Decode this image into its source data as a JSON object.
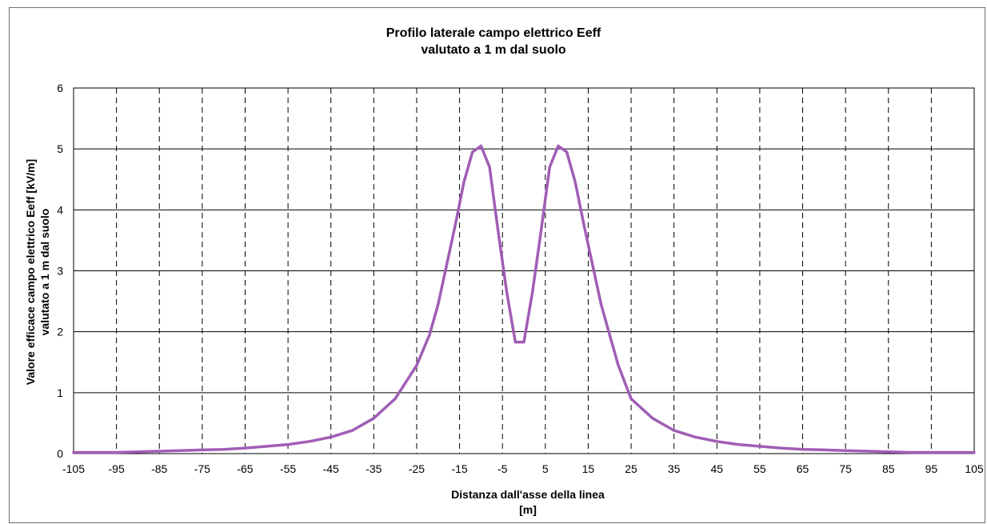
{
  "chart_data": {
    "type": "line",
    "title": "Profilo laterale campo elettrico Eeff",
    "subtitle": "valutato a 1 m dal suolo",
    "xlabel_line1": "Distanza dall'asse della linea",
    "xlabel_line2": "[m]",
    "ylabel_line1": "Valore efficace campo elettrico Eeff [kV/m]",
    "ylabel_line2": "valutato a 1 m dal suolo",
    "xlim": [
      -105,
      105
    ],
    "ylim": [
      0,
      6
    ],
    "x_ticks": [
      -105,
      -95,
      -85,
      -75,
      -65,
      -55,
      -45,
      -35,
      -25,
      -15,
      -5,
      5,
      15,
      25,
      35,
      45,
      55,
      65,
      75,
      85,
      95,
      105
    ],
    "y_ticks": [
      0,
      1,
      2,
      3,
      4,
      5,
      6
    ],
    "grid": {
      "x": "dashed",
      "y": "solid"
    },
    "series": [
      {
        "color": "#a05eb5",
        "x": [
          -105,
          -100,
          -95,
          -90,
          -85,
          -80,
          -75,
          -70,
          -65,
          -60,
          -55,
          -50,
          -45,
          -40,
          -35,
          -30,
          -25,
          -22,
          -20,
          -18,
          -16,
          -14,
          -12,
          -10,
          -8,
          -6,
          -4,
          -2,
          0,
          2,
          4,
          6,
          8,
          10,
          12,
          14,
          16,
          18,
          20,
          22,
          25,
          30,
          35,
          40,
          45,
          50,
          55,
          60,
          65,
          70,
          75,
          80,
          85,
          90,
          95,
          100,
          105
        ],
        "y": [
          0.02,
          0.02,
          0.02,
          0.03,
          0.04,
          0.05,
          0.06,
          0.07,
          0.09,
          0.12,
          0.15,
          0.2,
          0.27,
          0.38,
          0.58,
          0.9,
          1.45,
          1.95,
          2.45,
          3.1,
          3.75,
          4.45,
          4.95,
          5.05,
          4.7,
          3.65,
          2.65,
          1.83,
          1.83,
          2.65,
          3.65,
          4.7,
          5.05,
          4.95,
          4.45,
          3.75,
          3.1,
          2.45,
          1.95,
          1.45,
          0.9,
          0.58,
          0.38,
          0.27,
          0.2,
          0.15,
          0.12,
          0.09,
          0.07,
          0.06,
          0.05,
          0.04,
          0.03,
          0.02,
          0.02,
          0.02,
          0.02
        ]
      }
    ]
  }
}
